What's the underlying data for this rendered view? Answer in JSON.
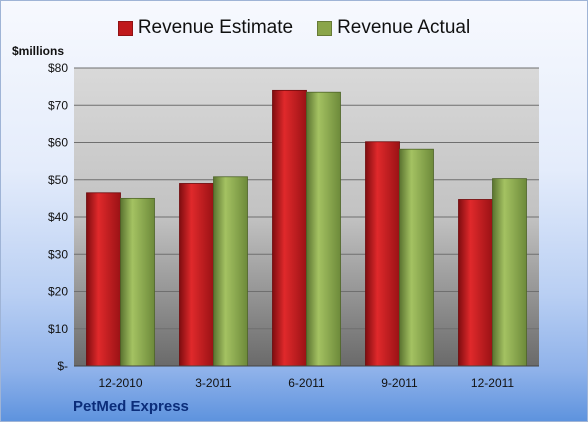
{
  "chart_data": {
    "type": "bar",
    "categories": [
      "12-2010",
      "3-2011",
      "6-2011",
      "9-2011",
      "12-2011"
    ],
    "series": [
      {
        "name": "Revenue Estimate",
        "values": [
          46.5,
          49,
          74,
          60.2,
          44.7
        ],
        "color": "#c0191c"
      },
      {
        "name": "Revenue Actual",
        "values": [
          45,
          50.8,
          73.5,
          58.2,
          50.3
        ],
        "color": "#8aa54a"
      }
    ],
    "ylabel": "$millions",
    "ylim": [
      0,
      80
    ],
    "yticks": [
      0,
      10,
      20,
      30,
      40,
      50,
      60,
      70,
      80
    ],
    "ytick_labels": [
      "$-",
      "$10",
      "$20",
      "$30",
      "$40",
      "$50",
      "$60",
      "$70",
      "$80"
    ],
    "grid": true,
    "legend_position": "top"
  },
  "footer": {
    "company": "PetMed Express"
  }
}
